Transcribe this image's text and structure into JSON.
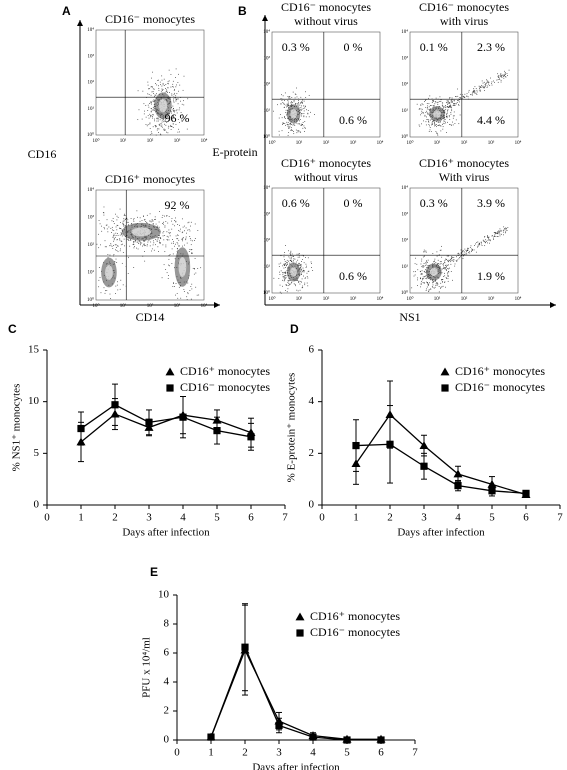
{
  "flow_cytometry": {
    "log_ticks": [
      "10⁰",
      "10¹",
      "10²",
      "10³",
      "10⁴"
    ],
    "panels": [
      {
        "label": "A",
        "x_axis_label": "CD14",
        "y_axis_label": "CD16",
        "plots": [
          {
            "title": [
              "CD16⁻ monocytes"
            ],
            "quadrants": {
              "lower_right": "96 %"
            }
          },
          {
            "title": [
              "CD16⁺ monocytes"
            ],
            "quadrants": {
              "upper_right": "92 %"
            }
          }
        ]
      },
      {
        "label": "B",
        "x_axis_label": "NS1",
        "y_axis_label": "E-protein",
        "plots": [
          {
            "title": [
              "CD16⁻ monocytes",
              "without virus"
            ],
            "quadrants": {
              "upper_left": "0.3 %",
              "upper_right": "0 %",
              "lower_right": "0.6 %"
            }
          },
          {
            "title": [
              "CD16⁻ monocytes",
              "with virus"
            ],
            "quadrants": {
              "upper_left": "0.1 %",
              "upper_right": "2.3 %",
              "lower_right": "4.4 %"
            }
          },
          {
            "title": [
              "CD16⁺ monocytes",
              "without virus"
            ],
            "quadrants": {
              "upper_left": "0.6 %",
              "upper_right": "0 %",
              "lower_right": "0.6 %"
            }
          },
          {
            "title": [
              "CD16⁺ monocytes",
              "With virus"
            ],
            "quadrants": {
              "upper_left": "0.3 %",
              "upper_right": "3.9 %",
              "lower_right": "1.9 %"
            }
          }
        ]
      }
    ]
  },
  "chart_data": [
    {
      "type": "line",
      "panel_label": "C",
      "x_label": "Days after infection",
      "y_label": "% NS1⁺ monocytes",
      "x": [
        1,
        2,
        3,
        4,
        5,
        6
      ],
      "xlim": [
        0,
        7
      ],
      "xticks": [
        0,
        1,
        2,
        3,
        4,
        5,
        6,
        7
      ],
      "ylim": [
        0,
        15
      ],
      "yticks": [
        0,
        5,
        10,
        15
      ],
      "legend": "upper right",
      "series": [
        {
          "name": "CD16⁺ monocytes",
          "color": "#000000",
          "marker": "triangle",
          "values": [
            6.1,
            8.8,
            7.5,
            8.7,
            8.2,
            7.0
          ],
          "errors": [
            1.9,
            1.5,
            0.8,
            1.8,
            1.0,
            1.4
          ]
        },
        {
          "name": "CD16⁻ monocytes",
          "color": "#000000",
          "marker": "square",
          "values": [
            7.4,
            9.7,
            8.0,
            8.5,
            7.2,
            6.6
          ],
          "errors": [
            1.6,
            2.0,
            1.2,
            2.0,
            1.3,
            1.3
          ]
        }
      ]
    },
    {
      "type": "line",
      "panel_label": "D",
      "x_label": "Days after infection",
      "y_label": "% E-protein⁺ monocytes",
      "x": [
        1,
        2,
        3,
        4,
        5,
        6
      ],
      "xlim": [
        0,
        7
      ],
      "xticks": [
        0,
        1,
        2,
        3,
        4,
        5,
        6,
        7
      ],
      "ylim": [
        0,
        6
      ],
      "yticks": [
        0,
        2,
        4,
        6
      ],
      "legend": "upper right",
      "series": [
        {
          "name": "CD16⁺ monocytes",
          "color": "#000000",
          "marker": "triangle",
          "values": [
            1.6,
            3.5,
            2.3,
            1.2,
            0.8,
            0.4
          ],
          "errors": [
            0.8,
            1.3,
            0.4,
            0.3,
            0.3,
            0.1
          ]
        },
        {
          "name": "CD16⁻ monocytes",
          "color": "#000000",
          "marker": "square",
          "values": [
            2.3,
            2.35,
            1.5,
            0.75,
            0.55,
            0.45
          ],
          "errors": [
            1.0,
            1.5,
            0.5,
            0.2,
            0.2,
            0.1
          ]
        }
      ]
    },
    {
      "type": "line",
      "panel_label": "E",
      "x_label": "Days after infection",
      "y_label": "PFU x 10⁴/ml",
      "x": [
        1,
        2,
        3,
        4,
        5,
        6
      ],
      "xlim": [
        0,
        7
      ],
      "xticks": [
        0,
        1,
        2,
        3,
        4,
        5,
        6,
        7
      ],
      "ylim": [
        0,
        10
      ],
      "yticks": [
        0,
        2,
        4,
        6,
        8,
        10
      ],
      "legend": "upper right",
      "series": [
        {
          "name": "CD16⁺ monocytes",
          "color": "#000000",
          "marker": "triangle",
          "values": [
            0.2,
            6.2,
            1.3,
            0.3,
            0.05,
            0.05
          ],
          "errors": [
            0.1,
            3.1,
            0.6,
            0.2,
            0.05,
            0.05
          ]
        },
        {
          "name": "CD16⁻ monocytes",
          "color": "#000000",
          "marker": "square",
          "values": [
            0.2,
            6.4,
            1.0,
            0.2,
            0,
            0
          ],
          "errors": [
            0.1,
            3.0,
            0.5,
            0.1,
            0,
            0
          ]
        }
      ]
    }
  ]
}
